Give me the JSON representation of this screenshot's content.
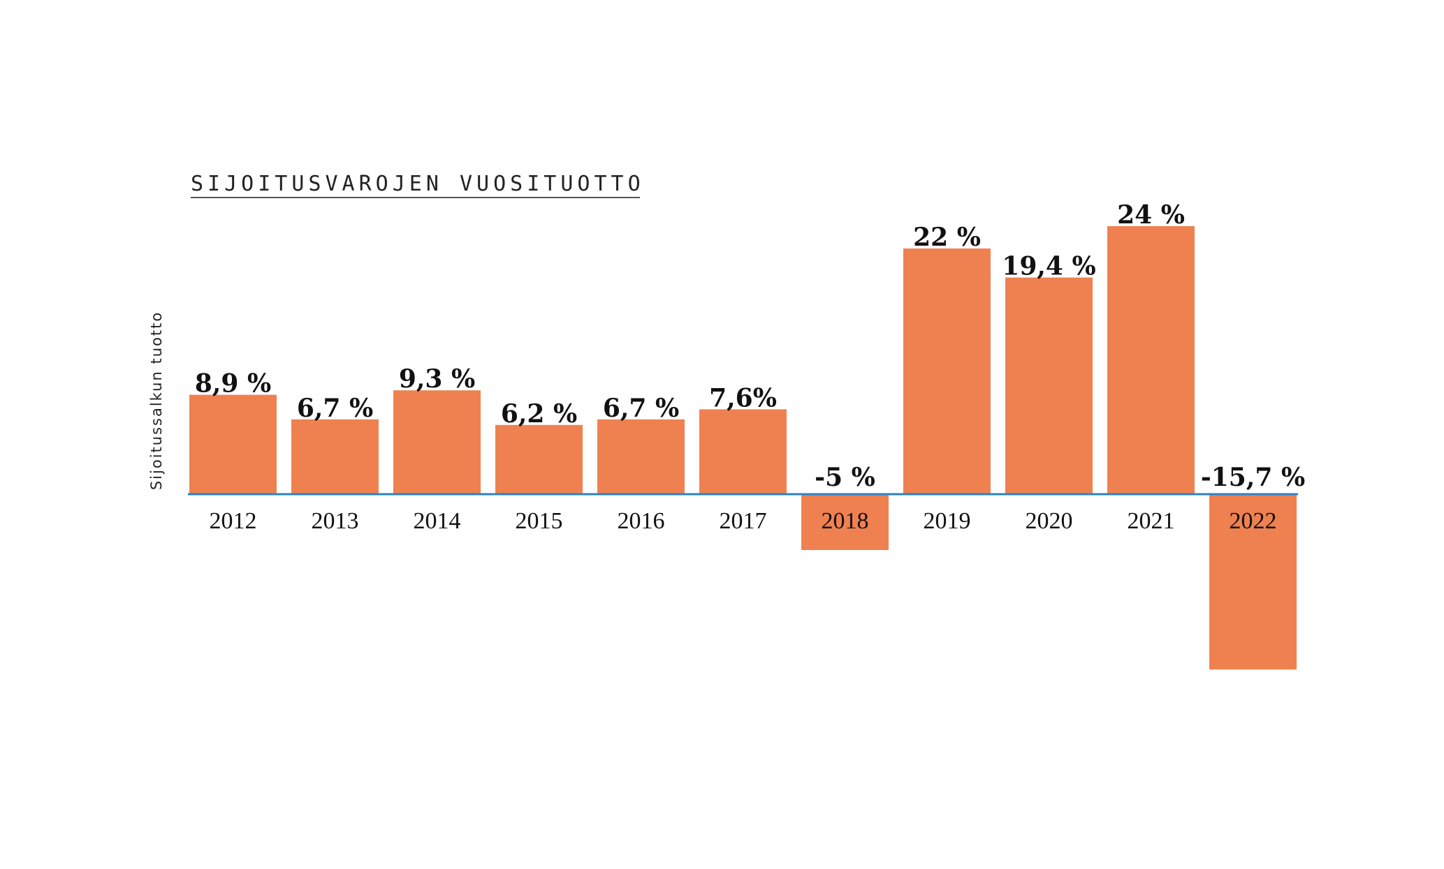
{
  "chart_data": {
    "type": "bar",
    "title": "SIJOITUSVAROJEN VUOSITUOTTO",
    "ylabel": "Sijoitussalkun tuotto",
    "xlabel": "",
    "categories": [
      "2012",
      "2013",
      "2014",
      "2015",
      "2016",
      "2017",
      "2018",
      "2019",
      "2020",
      "2021",
      "2022"
    ],
    "values": [
      8.9,
      6.7,
      9.3,
      6.2,
      6.7,
      7.6,
      -5,
      22,
      19.4,
      24,
      -15.7
    ],
    "data_labels": [
      "8,9 %",
      "6,7 %",
      "9,3 %",
      "6,2 %",
      "6,7 %",
      "7,6%",
      "-5 %",
      "22 %",
      "19,4 %",
      "24 %",
      "-15,7 %"
    ],
    "unit": "%",
    "grid": false,
    "legend": "none",
    "colors": {
      "bar": "#ef8150",
      "zero_line": "#2b82c9",
      "title_underline": "#555555",
      "text": "#111111"
    }
  }
}
